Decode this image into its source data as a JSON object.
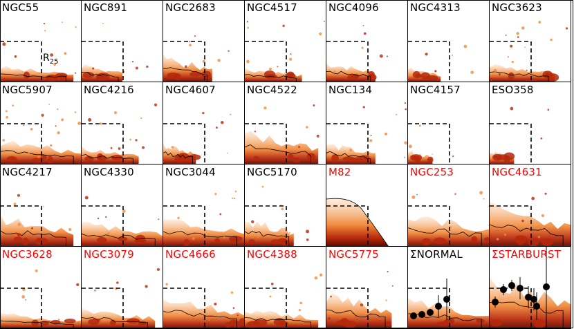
{
  "panels": [
    {
      "name": "NGC55",
      "type": "normal"
    },
    {
      "name": "NGC891",
      "type": "normal"
    },
    {
      "name": "NGC2683",
      "type": "normal"
    },
    {
      "name": "NGC4517",
      "type": "normal"
    },
    {
      "name": "NGC4096",
      "type": "normal"
    },
    {
      "name": "NGC4313",
      "type": "normal"
    },
    {
      "name": "NGC3623",
      "type": "normal"
    },
    {
      "name": "NGC5907",
      "type": "normal"
    },
    {
      "name": "NGC4216",
      "type": "normal"
    },
    {
      "name": "NGC4607",
      "type": "normal"
    },
    {
      "name": "NGC4522",
      "type": "normal"
    },
    {
      "name": "NGC134",
      "type": "normal"
    },
    {
      "name": "NGC4157",
      "type": "normal"
    },
    {
      "name": "ESO358",
      "type": "normal"
    },
    {
      "name": "NGC4217",
      "type": "normal"
    },
    {
      "name": "NGC4330",
      "type": "normal"
    },
    {
      "name": "NGC3044",
      "type": "normal"
    },
    {
      "name": "NGC5170",
      "type": "normal"
    },
    {
      "name": "M82",
      "type": "starburst"
    },
    {
      "name": "NGC253",
      "type": "starburst"
    },
    {
      "name": "NGC4631",
      "type": "starburst"
    },
    {
      "name": "NGC3628",
      "type": "starburst"
    },
    {
      "name": "NGC3079",
      "type": "starburst"
    },
    {
      "name": "NGC4666",
      "type": "starburst"
    },
    {
      "name": "NGC4388",
      "type": "starburst"
    },
    {
      "name": "NGC5775",
      "type": "starburst"
    },
    {
      "name": "ΣNORMAL",
      "type": "normal"
    },
    {
      "name": "ΣSTARBURST",
      "type": "starburst"
    }
  ],
  "annotation": {
    "r_symbol": "R",
    "r_subscript": "25"
  },
  "colors": {
    "normal_label": "#000000",
    "starburst_label": "#ff0000",
    "map_light": "#fde2c8",
    "map_mid": "#f08a3c",
    "map_dark": "#b5280c",
    "map_darkest": "#5a0a00"
  }
}
